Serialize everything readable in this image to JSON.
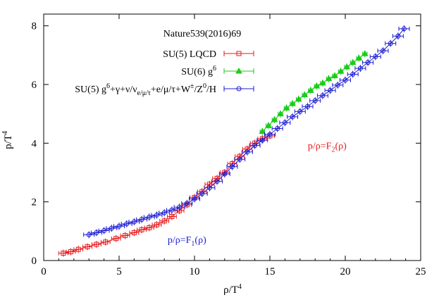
{
  "chart_data": {
    "type": "scatter",
    "xlabel": "ρ/T",
    "xlabel_sup": "4",
    "ylabel": "p/T",
    "ylabel_sup": "4",
    "xlim": [
      0,
      25
    ],
    "ylim": [
      0,
      8.4
    ],
    "xticks": [
      0,
      5,
      10,
      15,
      20,
      25
    ],
    "yticks": [
      0,
      2,
      4,
      6,
      8
    ],
    "xtick_labels": [
      "0",
      "5",
      "10",
      "15",
      "20",
      "25"
    ],
    "ytick_labels": [
      "0",
      "2",
      "4",
      "6",
      "8"
    ],
    "grid": false,
    "legend_title": "Nature539(2016)69",
    "legend_placement": "top-left",
    "series": [
      {
        "name": "SU(5) LQCD",
        "legend_parts": [
          [
            "SU(5) LQCD",
            ""
          ]
        ],
        "color": "#e8191c",
        "marker": "square",
        "points": [
          [
            1.3,
            0.25
          ],
          [
            1.8,
            0.3
          ],
          [
            2.3,
            0.38
          ],
          [
            2.9,
            0.47
          ],
          [
            3.5,
            0.55
          ],
          [
            4.1,
            0.63
          ],
          [
            4.8,
            0.75
          ],
          [
            5.4,
            0.85
          ],
          [
            6.0,
            0.95
          ],
          [
            6.5,
            1.05
          ],
          [
            7.0,
            1.12
          ],
          [
            7.5,
            1.22
          ],
          [
            8.0,
            1.35
          ],
          [
            8.5,
            1.5
          ],
          [
            9.0,
            1.7
          ],
          [
            9.5,
            1.9
          ],
          [
            10.0,
            2.15
          ],
          [
            10.5,
            2.35
          ],
          [
            11.0,
            2.6
          ],
          [
            11.5,
            2.8
          ],
          [
            12.0,
            3.0
          ],
          [
            12.5,
            3.3
          ],
          [
            13.0,
            3.55
          ],
          [
            13.5,
            3.8
          ],
          [
            14.0,
            4.0
          ],
          [
            14.5,
            4.15
          ],
          [
            15.0,
            4.25
          ]
        ],
        "xerr": 0.3
      },
      {
        "name": "SU(6) g",
        "legend_parts": [
          [
            "SU(6) g",
            ""
          ],
          [
            "6",
            "sup"
          ]
        ],
        "color": "#1bcc1b",
        "marker": "triangle",
        "points": [
          [
            14.5,
            4.4
          ],
          [
            14.9,
            4.6
          ],
          [
            15.3,
            4.8
          ],
          [
            15.7,
            5.0
          ],
          [
            16.1,
            5.2
          ],
          [
            16.5,
            5.35
          ],
          [
            16.9,
            5.5
          ],
          [
            17.3,
            5.65
          ],
          [
            17.7,
            5.8
          ],
          [
            18.1,
            5.95
          ],
          [
            18.5,
            6.05
          ],
          [
            18.9,
            6.2
          ],
          [
            19.3,
            6.3
          ],
          [
            19.7,
            6.45
          ],
          [
            20.1,
            6.6
          ],
          [
            20.5,
            6.75
          ],
          [
            20.9,
            6.9
          ],
          [
            21.3,
            7.05
          ]
        ],
        "xerr": 0.15
      },
      {
        "name": "SU(5) g6+γ+ν/νe/μ/τ+e/μ/τ+W±/Z0/H",
        "legend_parts": [
          [
            "SU(5) g",
            ""
          ],
          [
            "6",
            "sup"
          ],
          [
            "+γ+ν/ν",
            ""
          ],
          [
            "e/μ/τ",
            "sub"
          ],
          [
            "+e/μ/τ+W",
            ""
          ],
          [
            "±",
            "sup"
          ],
          [
            "/Z",
            ""
          ],
          [
            "0",
            "sup"
          ],
          [
            "/H",
            ""
          ]
        ],
        "color": "#1b1bd4",
        "marker": "circle",
        "points": [
          [
            3.0,
            0.88
          ],
          [
            3.5,
            0.95
          ],
          [
            4.0,
            1.02
          ],
          [
            4.5,
            1.1
          ],
          [
            5.0,
            1.17
          ],
          [
            5.5,
            1.25
          ],
          [
            6.0,
            1.32
          ],
          [
            6.5,
            1.4
          ],
          [
            7.0,
            1.48
          ],
          [
            7.5,
            1.55
          ],
          [
            8.0,
            1.63
          ],
          [
            8.5,
            1.72
          ],
          [
            9.0,
            1.82
          ],
          [
            9.5,
            1.95
          ],
          [
            10.0,
            2.1
          ],
          [
            10.5,
            2.28
          ],
          [
            11.0,
            2.48
          ],
          [
            11.5,
            2.7
          ],
          [
            12.0,
            2.95
          ],
          [
            12.5,
            3.2
          ],
          [
            13.0,
            3.45
          ],
          [
            13.5,
            3.7
          ],
          [
            14.0,
            3.92
          ],
          [
            14.5,
            4.1
          ],
          [
            15.0,
            4.3
          ],
          [
            15.5,
            4.5
          ],
          [
            16.0,
            4.7
          ],
          [
            16.5,
            4.9
          ],
          [
            17.0,
            5.08
          ],
          [
            17.5,
            5.25
          ],
          [
            18.0,
            5.45
          ],
          [
            18.5,
            5.62
          ],
          [
            19.0,
            5.8
          ],
          [
            19.5,
            5.98
          ],
          [
            20.0,
            6.15
          ],
          [
            20.5,
            6.35
          ],
          [
            21.0,
            6.55
          ],
          [
            21.5,
            6.75
          ],
          [
            22.0,
            6.95
          ],
          [
            22.5,
            7.15
          ],
          [
            23.0,
            7.4
          ],
          [
            23.5,
            7.65
          ],
          [
            23.9,
            7.9
          ]
        ],
        "xerr": 0.35
      }
    ],
    "annotations": [
      {
        "parts": [
          [
            "p/ρ=F",
            ""
          ],
          [
            "1",
            "sub"
          ],
          [
            "(ρ)",
            ""
          ]
        ],
        "x": 9.5,
        "y": 0.6,
        "color": "#1b1bd4"
      },
      {
        "parts": [
          [
            "p/ρ=F",
            ""
          ],
          [
            "2",
            "sub"
          ],
          [
            "(ρ)",
            ""
          ]
        ],
        "x": 18.8,
        "y": 3.8,
        "color": "#e8191c"
      }
    ]
  }
}
